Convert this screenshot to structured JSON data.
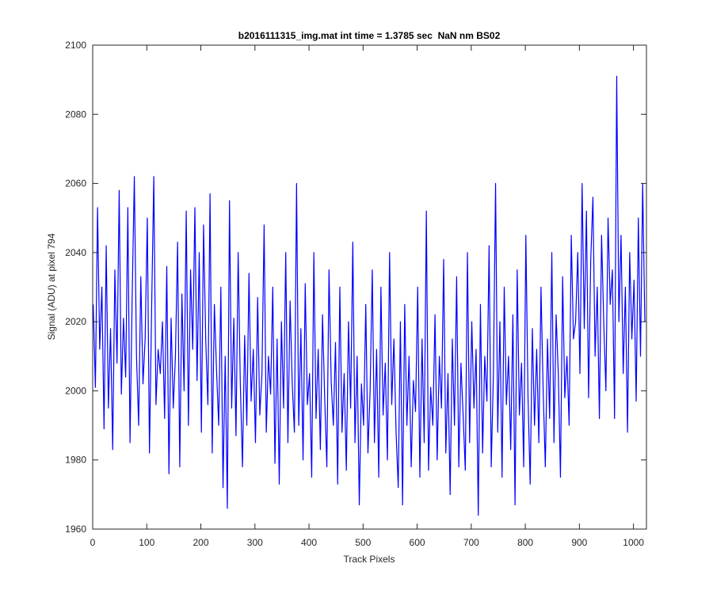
{
  "chart_data": {
    "type": "line",
    "title": "b2016111315_img.mat int time = 1.3785 sec  NaN nm BS02",
    "xlabel": "Track Pixels",
    "ylabel": "Signal (ADU) at pixel 794",
    "xlim": [
      0,
      1024
    ],
    "ylim": [
      1960,
      2100
    ],
    "xticks": [
      0,
      100,
      200,
      300,
      400,
      500,
      600,
      700,
      800,
      900,
      1000
    ],
    "yticks": [
      1960,
      1980,
      2000,
      2020,
      2040,
      2060,
      2080,
      2100
    ],
    "grid": false,
    "series": [
      {
        "color": "#0000ff",
        "x": [
          1,
          5,
          9,
          13,
          17,
          21,
          25,
          29,
          33,
          37,
          41,
          45,
          49,
          53,
          57,
          61,
          65,
          69,
          73,
          77,
          81,
          85,
          89,
          93,
          97,
          101,
          105,
          109,
          113,
          117,
          121,
          125,
          129,
          133,
          137,
          141,
          145,
          149,
          153,
          157,
          161,
          165,
          169,
          173,
          177,
          181,
          185,
          189,
          193,
          197,
          201,
          205,
          209,
          213,
          217,
          221,
          225,
          229,
          233,
          237,
          241,
          245,
          249,
          253,
          257,
          261,
          265,
          269,
          273,
          277,
          281,
          285,
          289,
          293,
          297,
          301,
          305,
          309,
          313,
          317,
          321,
          325,
          329,
          333,
          337,
          341,
          345,
          349,
          353,
          357,
          361,
          365,
          369,
          373,
          377,
          381,
          385,
          389,
          393,
          397,
          401,
          405,
          409,
          413,
          417,
          421,
          425,
          429,
          433,
          437,
          441,
          445,
          449,
          453,
          457,
          461,
          465,
          469,
          473,
          477,
          481,
          485,
          489,
          493,
          497,
          501,
          505,
          509,
          513,
          517,
          521,
          525,
          529,
          533,
          537,
          541,
          545,
          549,
          553,
          557,
          561,
          565,
          569,
          573,
          577,
          581,
          585,
          589,
          593,
          597,
          601,
          605,
          609,
          613,
          617,
          621,
          625,
          629,
          633,
          637,
          641,
          645,
          649,
          653,
          657,
          661,
          665,
          669,
          673,
          677,
          681,
          685,
          689,
          693,
          697,
          701,
          705,
          709,
          713,
          717,
          721,
          725,
          729,
          733,
          737,
          741,
          745,
          749,
          753,
          757,
          761,
          765,
          769,
          773,
          777,
          781,
          785,
          789,
          793,
          797,
          801,
          805,
          809,
          813,
          817,
          821,
          825,
          829,
          833,
          837,
          841,
          845,
          849,
          853,
          857,
          861,
          865,
          869,
          873,
          877,
          881,
          885,
          889,
          893,
          897,
          901,
          905,
          909,
          913,
          917,
          921,
          925,
          929,
          933,
          937,
          941,
          945,
          949,
          953,
          957,
          961,
          965,
          969,
          973,
          977,
          981,
          985,
          989,
          993,
          997,
          1001,
          1005,
          1009,
          1013,
          1017,
          1021
        ],
        "values": [
          2025,
          2001,
          2053,
          2012,
          2030,
          1989,
          2042,
          1995,
          2018,
          1983,
          2035,
          2008,
          2058,
          1999,
          2021,
          2004,
          2053,
          1985,
          2027,
          2062,
          2010,
          1990,
          2033,
          2002,
          2015,
          2050,
          1982,
          2024,
          2062,
          1996,
          2012,
          2005,
          2020,
          1992,
          2036,
          1976,
          2021,
          1995,
          2010,
          2043,
          1978,
          2028,
          2000,
          2052,
          1990,
          2035,
          2012,
          2053,
          2003,
          2040,
          1988,
          2048,
          2015,
          1996,
          2057,
          1982,
          2025,
          2006,
          1990,
          2030,
          1972,
          2010,
          1966,
          2055,
          1995,
          2021,
          1987,
          2040,
          2002,
          1978,
          2016,
          1990,
          2034,
          1997,
          2012,
          1985,
          2027,
          1993,
          2005,
          2048,
          1988,
          2010,
          1999,
          2030,
          1979,
          2015,
          1973,
          2020,
          1995,
          2040,
          1985,
          2026,
          2002,
          1988,
          2060,
          1990,
          2018,
          1980,
          2031,
          1996,
          2005,
          1975,
          2040,
          1992,
          2012,
          1983,
          2022,
          1998,
          1978,
          2035,
          2003,
          1990,
          2014,
          1973,
          2030,
          1988,
          2005,
          1977,
          2020,
          1995,
          2043,
          1985,
          2010,
          1967,
          2002,
          1990,
          2025,
          1982,
          2000,
          2035,
          1985,
          2012,
          1975,
          2030,
          1993,
          2008,
          1980,
          2040,
          1996,
          2015,
          1988,
          1972,
          2020,
          1967,
          2025,
          1990,
          2010,
          1978,
          2003,
          1994,
          2030,
          1975,
          2015,
          1985,
          2052,
          1977,
          2001,
          1990,
          2022,
          1980,
          2010,
          1995,
          2038,
          1982,
          2005,
          1970,
          2015,
          1990,
          2033,
          1978,
          2008,
          1993,
          1977,
          2040,
          1985,
          2020,
          1995,
          2012,
          1964,
          2025,
          1982,
          2010,
          1997,
          2042,
          1978,
          2005,
          2060,
          1988,
          2020,
          1975,
          2030,
          1996,
          2010,
          1983,
          2022,
          1967,
          2035,
          1993,
          2008,
          1978,
          2045,
          1998,
          1973,
          2018,
          1990,
          2012,
          1985,
          2030,
          2000,
          1978,
          2015,
          1992,
          2040,
          1985,
          2022,
          2005,
          1975,
          2033,
          1998,
          2010,
          1990,
          2045,
          2015,
          2020,
          2040,
          2005,
          2060,
          2018,
          2052,
          1998,
          2038,
          2056,
          2010,
          2030,
          1992,
          2045,
          2020,
          2000,
          2050,
          2025,
          2035,
          1992,
          2091,
          2020,
          2045,
          2005,
          2030,
          1988,
          2040,
          2015,
          2032,
          1997,
          2050,
          2010,
          2060,
          2020
        ]
      }
    ]
  }
}
